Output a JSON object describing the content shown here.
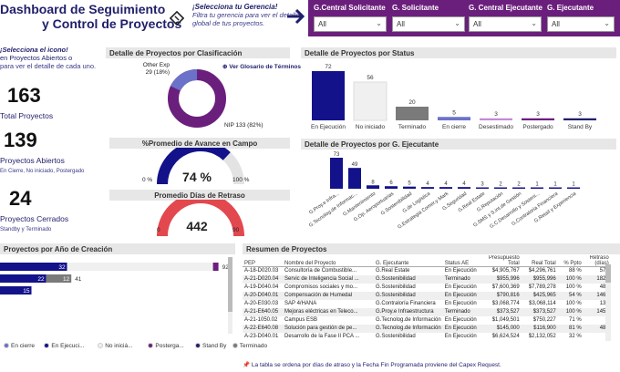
{
  "header": {
    "title_line1": "Dashboard de Seguimiento",
    "title_line2": "y Control de Proyectos",
    "select_title": "¡Selecciona tu Gerencia!",
    "select_hint": "Filtra tu gerencia para ver el detalle global de tus proyectos.",
    "filters": [
      {
        "label": "G.Central Solicitante",
        "value": "All"
      },
      {
        "label": "G. Solicitante",
        "value": "All"
      },
      {
        "label": "G. Central Ejecutante",
        "value": "All"
      },
      {
        "label": "G. Ejecutante",
        "value": "All"
      }
    ]
  },
  "kpis": {
    "note_line1": "¡Selecciona el icono!",
    "note_line2": "en Proyectos Abiertos o",
    "note_line3": "para ver el detalle de cada uno.",
    "total_value": "163",
    "total_label": "Total Proyectos",
    "open_value": "139",
    "open_label": "Proyectos Abiertos",
    "open_sub": "En Cierre, No iniciado, Postergado",
    "closed_value": "24",
    "closed_label": "Proyectos Cerrados",
    "closed_sub": "Standby y Terminado"
  },
  "classification": {
    "title": "Detalle de Proyectos por Clasificación",
    "glossary": "Ver Glosario de Términos",
    "other_label": "Other Exp",
    "other_value": "29 (18%)",
    "nip_label": "NIP 133 (82%)",
    "other_fraction": 0.18
  },
  "status": {
    "title": "Detalle de Proyectos por Status",
    "bars": [
      {
        "label": "En Ejecución",
        "value": 72,
        "color": "#13128a"
      },
      {
        "label": "No iniciado",
        "value": 56,
        "color": "#f0f0f0"
      },
      {
        "label": "Terminado",
        "value": 20,
        "color": "#7a7a7a"
      },
      {
        "label": "En cierre",
        "value": 5,
        "color": "#6b72c9"
      },
      {
        "label": "Desestimado",
        "value": 3,
        "color": "#c58ad6"
      },
      {
        "label": "Postergado",
        "value": 3,
        "color": "#6b1f7c"
      },
      {
        "label": "Stand By",
        "value": 3,
        "color": "#1f1f6b"
      }
    ]
  },
  "avance": {
    "title": "%Promedio de Avance en Campo",
    "value": "74 %",
    "min": "0 %",
    "max": "100 %",
    "fraction": 0.74
  },
  "retraso": {
    "title": "Promedio Días de Retraso",
    "value": "442",
    "min": "0",
    "max": "90"
  },
  "ejecutante": {
    "title": "Detalle de Proyectos por G. Ejecutante",
    "bars": [
      {
        "label": "G.Proy.e Infra...",
        "value": 73
      },
      {
        "label": "G.Tecnolog.de Informac...",
        "value": 49
      },
      {
        "label": "G.Mantenimiento",
        "value": 8
      },
      {
        "label": "G.Op. Aeroportuarias",
        "value": 6
      },
      {
        "label": "G.Sostenibilidad",
        "value": 5
      },
      {
        "label": "G.de Logística",
        "value": 4
      },
      {
        "label": "G.Estrategia Comer.y Mark",
        "value": 4
      },
      {
        "label": "G.Seguridad",
        "value": 4
      },
      {
        "label": "G.Real Estate",
        "value": 3
      },
      {
        "label": "G.Reputación",
        "value": 2
      },
      {
        "label": "G.SMS y S.int.de Gestión",
        "value": 2
      },
      {
        "label": "G.C.Desarrollo y Sosteni...",
        "value": 1
      },
      {
        "label": "G.Contraloría Financiera",
        "value": 1
      },
      {
        "label": "G.Retail y Experiencia",
        "value": 1
      }
    ]
  },
  "por_anio": {
    "title": "Proyectos por Año de Creación",
    "rows": [
      {
        "a": 32,
        "b": null,
        "c": 92
      },
      {
        "a": 22,
        "b": 12,
        "c": 41
      },
      {
        "a": 15,
        "b": null,
        "c": null
      }
    ],
    "legend": [
      "En cierre",
      "En Ejecuci...",
      "No iniciá...",
      "Posterga...",
      "Stand By",
      "Terminado"
    ]
  },
  "resumen": {
    "title": "Resumen de Proyectos",
    "columns": [
      "PEP",
      "Nombre del Proyecto",
      "G. Ejecutante",
      "Status AE",
      "Presupuesto Total",
      "Real Total",
      "% Ppto",
      "Retraso (días)"
    ],
    "rows": [
      [
        "A-18-D020.03",
        "Consultoría de Combustible...",
        "G.Real Estate",
        "En Ejecución",
        "$4,905,767",
        "$4,296,761",
        "88 %",
        "577"
      ],
      [
        "A-21-D020.04",
        "Servic de Inteligencia Social ...",
        "G.Sostenibilidad",
        "Terminado",
        "$955,996",
        "$955,996",
        "100 %",
        "1826"
      ],
      [
        "A-19-D040.04",
        "Compromisos sociales y mo...",
        "G.Sostenibilidad",
        "En Ejecución",
        "$7,600,369",
        "$7,789,278",
        "100 %",
        "485"
      ],
      [
        "A-20-D040.01",
        "Compensación de Humedal",
        "G.Sostenibilidad",
        "En Ejecución",
        "$790,816",
        "$425,965",
        "54 %",
        "1461"
      ],
      [
        "A-20-E030.03",
        "SAP 4/HANA",
        "G.Contraloría Financiera",
        "En Ejecución",
        "$3,068,774",
        "$3,068,114",
        "100 %",
        "131"
      ],
      [
        "A-21-E640.05",
        "Mejoras eléctricas en Teleco...",
        "G.Proy.e Infraestructura",
        "Terminado",
        "$373,527",
        "$373,527",
        "100 %",
        "1456"
      ],
      [
        "A-21-1050.02",
        "Campus ESB",
        "G.Tecnolog.de Información",
        "En Ejecución",
        "$1,049,501",
        "$750,227",
        "71 %",
        "0"
      ],
      [
        "A-22-E640.08",
        "Solución para gestión de pe...",
        "G.Tecnolog.de Información",
        "En Ejecución",
        "$145,000",
        "$116,900",
        "81 %",
        "488"
      ],
      [
        "A-23-D040.01",
        "Desarrollo de la Fase II PCA ...",
        "G.Sostenibilidad",
        "En Ejecución",
        "$6,624,524",
        "$2,132,052",
        "32 %",
        "0"
      ]
    ],
    "total_label": "Total",
    "total_presupuesto": "$324,120,745",
    "total_real": "$274,452,917",
    "total_ppto": "85 %",
    "total_retraso": "194",
    "footnote": "La tabla se ordena por días de atraso y la Fecha Fin Programada proviene del Capex Request."
  }
}
